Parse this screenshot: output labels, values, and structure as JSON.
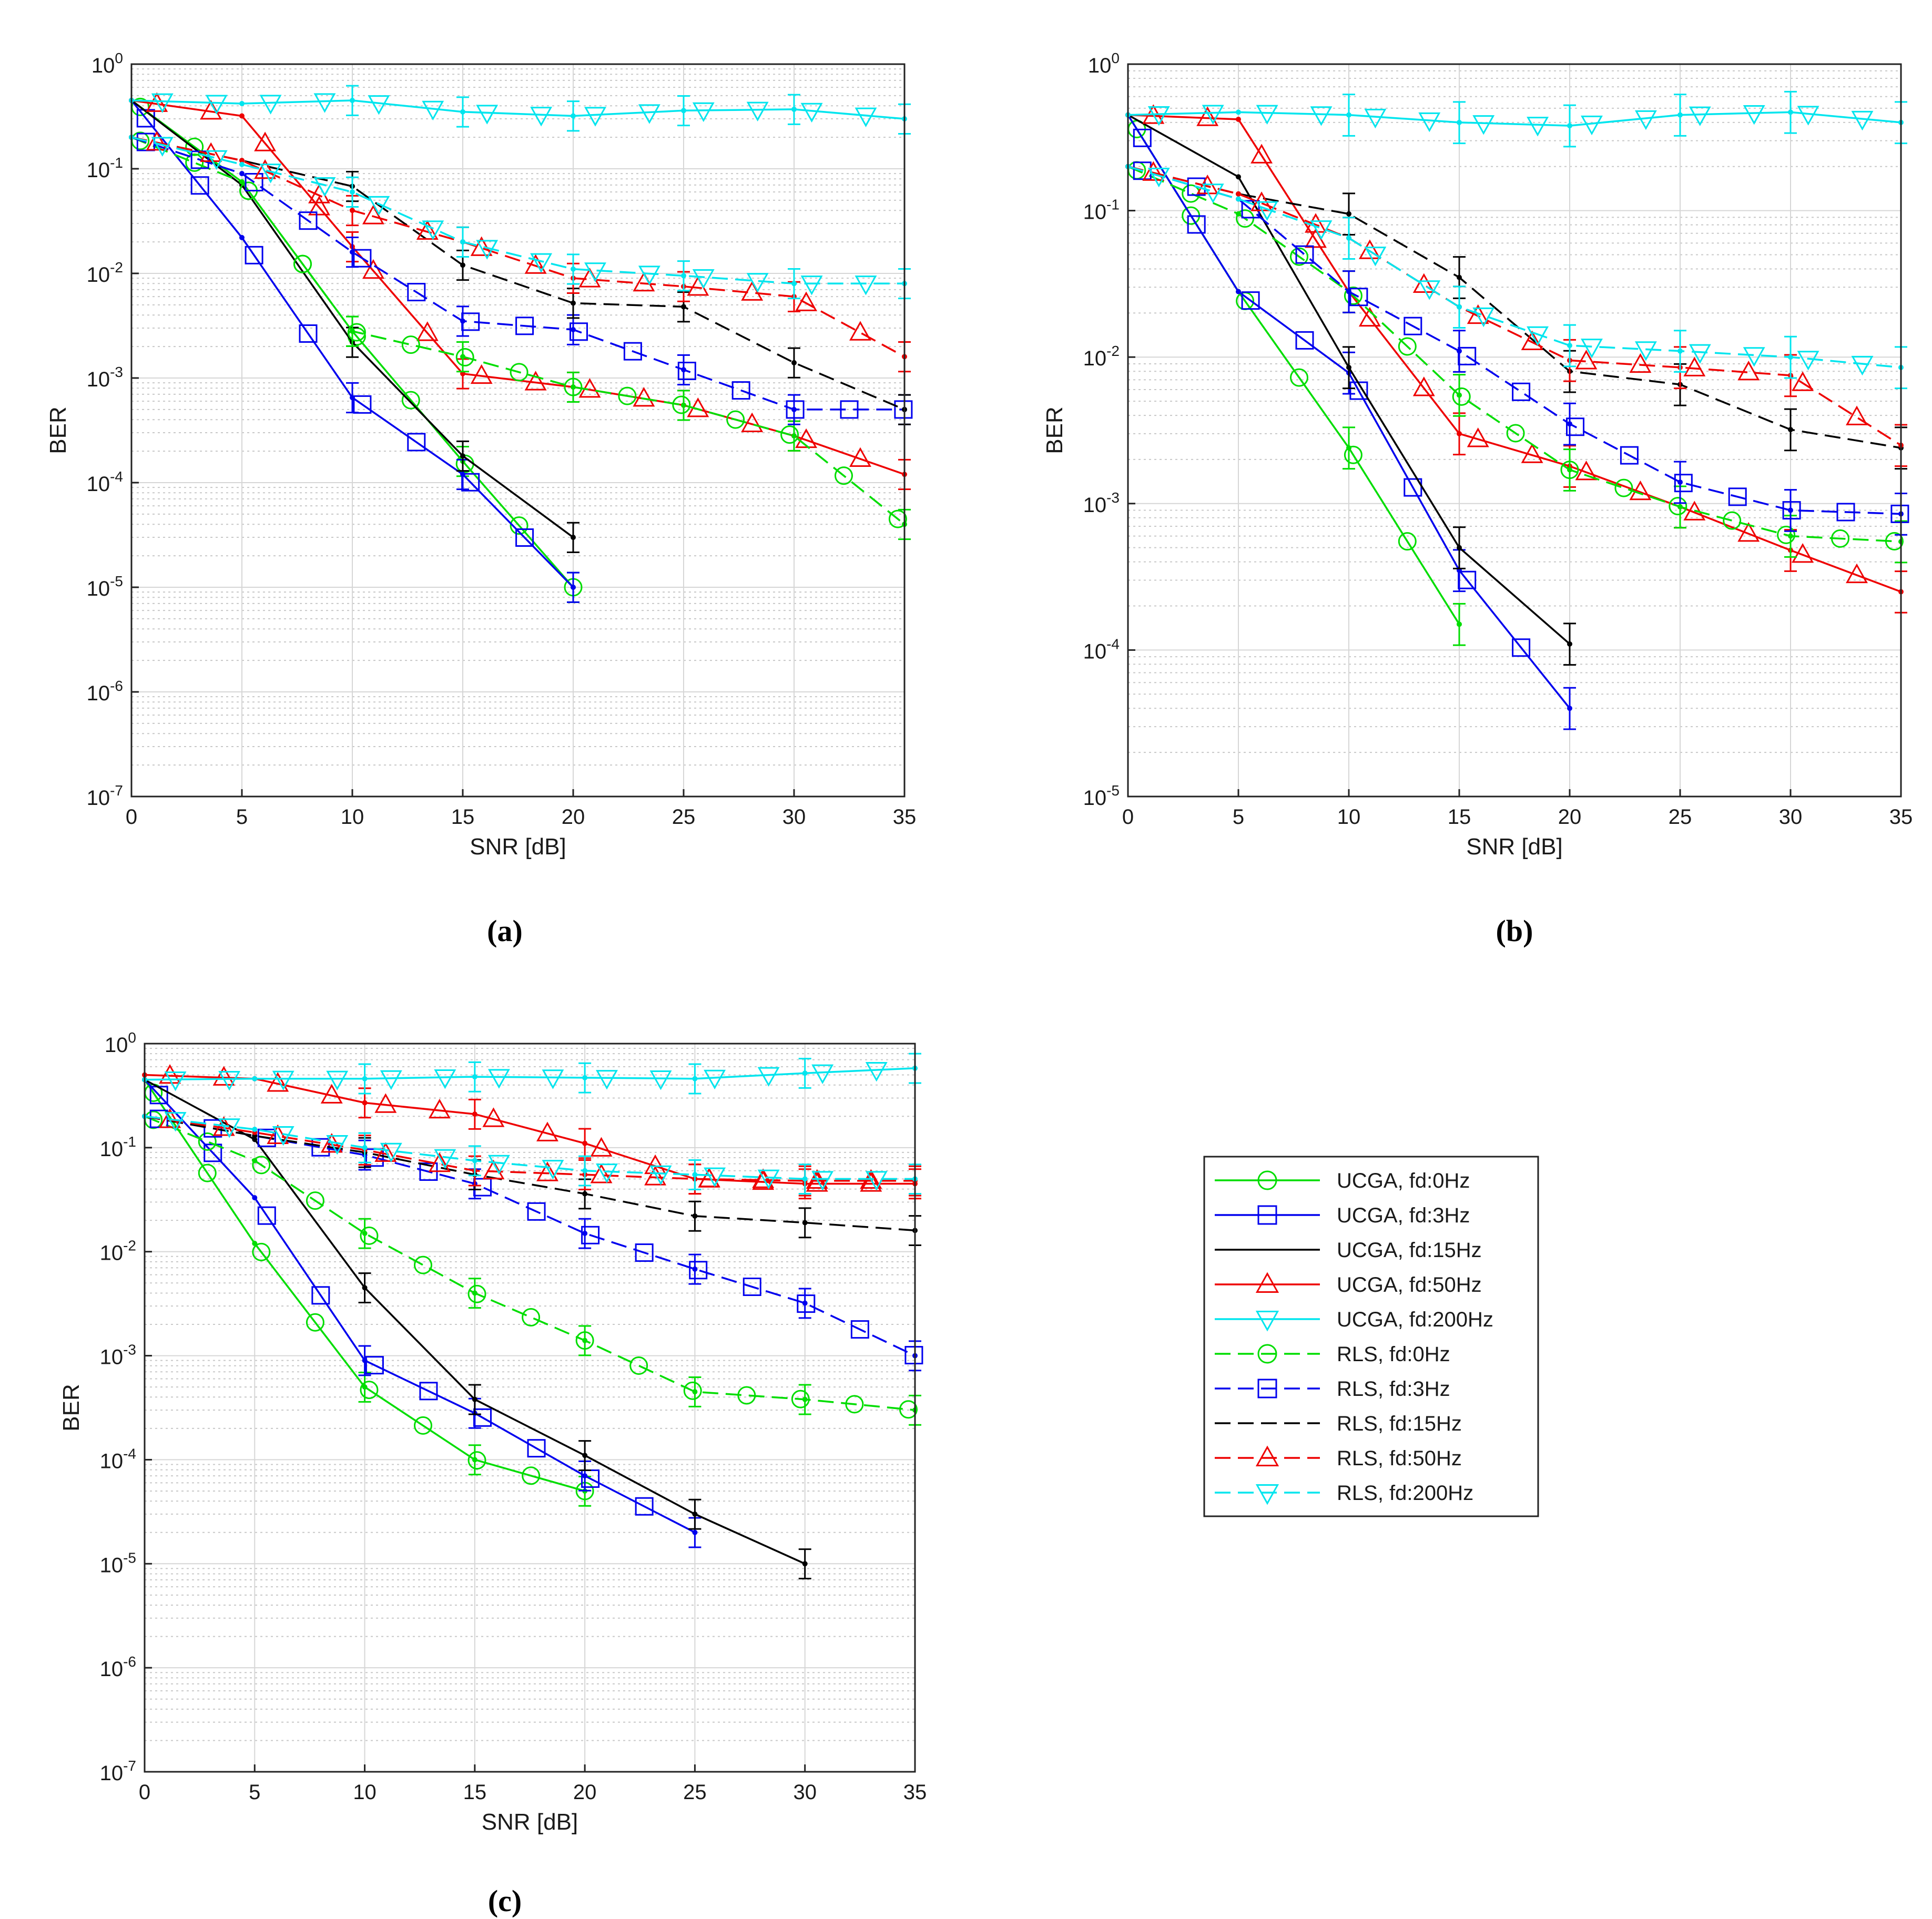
{
  "chart_data": [
    {
      "type": "line",
      "caption": "(a)",
      "xlabel": "SNR [dB]",
      "ylabel": "BER",
      "xlim": [
        0,
        35
      ],
      "ylim": [
        1e-07,
        1
      ],
      "yscale": "log",
      "grid": true,
      "x_ticks": [
        0,
        5,
        10,
        15,
        20,
        25,
        30,
        35
      ],
      "y_ticks": [
        -7,
        -6,
        -5,
        -4,
        -3,
        -2,
        -1,
        0
      ],
      "series": [
        {
          "name": "UCGA, fd:0Hz",
          "x": [
            0,
            5,
            10,
            15,
            20,
            25,
            30,
            35
          ],
          "y": [
            0.45,
            0.075,
            0.0028,
            0.00016,
            1e-05,
            null,
            null,
            null
          ]
        },
        {
          "name": "UCGA, fd:3Hz",
          "x": [
            0,
            5,
            10,
            15,
            20,
            25,
            30,
            35
          ],
          "y": [
            0.45,
            0.022,
            0.00065,
            0.00012,
            1e-05,
            null,
            null,
            null
          ]
        },
        {
          "name": "UCGA, fd:15Hz",
          "x": [
            0,
            5,
            10,
            15,
            20,
            25,
            30,
            35
          ],
          "y": [
            0.45,
            0.07,
            0.0022,
            0.00018,
            3e-05,
            null,
            null,
            null
          ]
        },
        {
          "name": "UCGA, fd:50Hz",
          "x": [
            0,
            5,
            10,
            15,
            20,
            25,
            30,
            35
          ],
          "y": [
            0.45,
            0.32,
            0.018,
            0.0011,
            0.00082,
            0.00055,
            0.00028,
            0.00012
          ]
        },
        {
          "name": "UCGA, fd:200Hz",
          "x": [
            0,
            5,
            10,
            15,
            20,
            25,
            30,
            35
          ],
          "y": [
            0.45,
            0.42,
            0.45,
            0.35,
            0.32,
            0.36,
            0.37,
            0.3
          ]
        },
        {
          "name": "RLS, fd:0Hz",
          "x": [
            0,
            5,
            10,
            15,
            20,
            25,
            30,
            35
          ],
          "y": [
            0.2,
            0.075,
            0.0028,
            0.0016,
            0.00082,
            0.00055,
            0.00028,
            4e-05
          ]
        },
        {
          "name": "RLS, fd:3Hz",
          "x": [
            0,
            5,
            10,
            15,
            20,
            25,
            30,
            35
          ],
          "y": [
            0.2,
            0.09,
            0.016,
            0.0035,
            0.0029,
            0.0012,
            0.0005,
            0.0005
          ]
        },
        {
          "name": "RLS, fd:15Hz",
          "x": [
            0,
            5,
            10,
            15,
            20,
            25,
            30,
            35
          ],
          "y": [
            0.2,
            0.12,
            0.068,
            0.012,
            0.0052,
            0.0048,
            0.0014,
            0.0005
          ]
        },
        {
          "name": "RLS, fd:50Hz",
          "x": [
            0,
            5,
            10,
            15,
            20,
            25,
            30,
            35
          ],
          "y": [
            0.2,
            0.12,
            0.04,
            0.02,
            0.009,
            0.0075,
            0.006,
            0.0016
          ]
        },
        {
          "name": "RLS, fd:200Hz",
          "x": [
            0,
            5,
            10,
            15,
            20,
            25,
            30,
            35
          ],
          "y": [
            0.2,
            0.11,
            0.06,
            0.02,
            0.011,
            0.0095,
            0.008,
            0.008
          ]
        }
      ]
    },
    {
      "type": "line",
      "caption": "(b)",
      "xlabel": "SNR [dB]",
      "ylabel": "BER",
      "xlim": [
        0,
        35
      ],
      "ylim": [
        1e-05,
        1
      ],
      "yscale": "log",
      "grid": true,
      "x_ticks": [
        0,
        5,
        10,
        15,
        20,
        25,
        30,
        35
      ],
      "y_ticks": [
        -5,
        -4,
        -3,
        -2,
        -1,
        0
      ],
      "series": [
        {
          "name": "UCGA, fd:0Hz",
          "x": [
            0,
            5,
            10,
            15,
            20,
            25,
            30,
            35
          ],
          "y": [
            0.45,
            0.028,
            0.0024,
            0.00015,
            null,
            null,
            null,
            null
          ]
        },
        {
          "name": "UCGA, fd:3Hz",
          "x": [
            0,
            5,
            10,
            15,
            20,
            25,
            30,
            35
          ],
          "y": [
            0.45,
            0.028,
            0.0078,
            0.00035,
            4e-05,
            null,
            null,
            null
          ]
        },
        {
          "name": "UCGA, fd:15Hz",
          "x": [
            0,
            5,
            10,
            15,
            20,
            25,
            30,
            35
          ],
          "y": [
            0.45,
            0.17,
            0.0085,
            0.0005,
            0.00011,
            null,
            null,
            null
          ]
        },
        {
          "name": "UCGA, fd:50Hz",
          "x": [
            0,
            5,
            10,
            15,
            20,
            25,
            30,
            35
          ],
          "y": [
            0.45,
            0.42,
            0.028,
            0.003,
            0.0018,
            0.00095,
            0.00048,
            0.00025
          ]
        },
        {
          "name": "UCGA, fd:200Hz",
          "x": [
            0,
            5,
            10,
            15,
            20,
            25,
            30,
            35
          ],
          "y": [
            0.45,
            0.47,
            0.45,
            0.4,
            0.38,
            0.45,
            0.47,
            0.4
          ]
        },
        {
          "name": "RLS, fd:0Hz",
          "x": [
            0,
            5,
            10,
            15,
            20,
            25,
            30,
            35
          ],
          "y": [
            0.2,
            0.095,
            0.028,
            0.0055,
            0.0017,
            0.00095,
            0.0006,
            0.00055
          ]
        },
        {
          "name": "RLS, fd:3Hz",
          "x": [
            0,
            5,
            10,
            15,
            20,
            25,
            30,
            35
          ],
          "y": [
            0.2,
            0.12,
            0.028,
            0.011,
            0.0035,
            0.0014,
            0.0009,
            0.00085
          ]
        },
        {
          "name": "RLS, fd:15Hz",
          "x": [
            0,
            5,
            10,
            15,
            20,
            25,
            30,
            35
          ],
          "y": [
            0.2,
            0.13,
            0.095,
            0.035,
            0.008,
            0.0065,
            0.0032,
            0.0024
          ]
        },
        {
          "name": "RLS, fd:50Hz",
          "x": [
            0,
            5,
            10,
            15,
            20,
            25,
            30,
            35
          ],
          "y": [
            0.2,
            0.13,
            0.065,
            0.022,
            0.0095,
            0.0085,
            0.0075,
            0.0025
          ]
        },
        {
          "name": "RLS, fd:200Hz",
          "x": [
            0,
            5,
            10,
            15,
            20,
            25,
            30,
            35
          ],
          "y": [
            0.2,
            0.12,
            0.065,
            0.022,
            0.012,
            0.011,
            0.01,
            0.0085
          ]
        }
      ]
    },
    {
      "type": "line",
      "caption": "(c)",
      "xlabel": "SNR [dB]",
      "ylabel": "BER",
      "xlim": [
        0,
        35
      ],
      "ylim": [
        1e-07,
        1
      ],
      "yscale": "log",
      "grid": true,
      "x_ticks": [
        0,
        5,
        10,
        15,
        20,
        25,
        30,
        35
      ],
      "y_ticks": [
        -7,
        -6,
        -5,
        -4,
        -3,
        -2,
        -1,
        0
      ],
      "series": [
        {
          "name": "UCGA, fd:0Hz",
          "x": [
            0,
            5,
            10,
            15,
            20,
            25,
            30,
            35
          ],
          "y": [
            0.45,
            0.012,
            0.0005,
            0.0001,
            5e-05,
            null,
            null,
            null
          ]
        },
        {
          "name": "UCGA, fd:3Hz",
          "x": [
            0,
            5,
            10,
            15,
            20,
            25,
            30,
            35
          ],
          "y": [
            0.45,
            0.033,
            0.0009,
            0.00028,
            7e-05,
            2e-05,
            null,
            null
          ]
        },
        {
          "name": "UCGA, fd:15Hz",
          "x": [
            0,
            5,
            10,
            15,
            20,
            25,
            30,
            35
          ],
          "y": [
            0.45,
            0.12,
            0.0045,
            0.00038,
            0.00011,
            3e-05,
            1e-05,
            null
          ]
        },
        {
          "name": "UCGA, fd:50Hz",
          "x": [
            0,
            5,
            10,
            15,
            20,
            25,
            30,
            35
          ],
          "y": [
            0.5,
            0.46,
            0.27,
            0.21,
            0.11,
            0.05,
            0.045,
            0.045
          ]
        },
        {
          "name": "UCGA, fd:200Hz",
          "x": [
            0,
            5,
            10,
            15,
            20,
            25,
            30,
            35
          ],
          "y": [
            0.45,
            0.46,
            0.46,
            0.48,
            0.47,
            0.46,
            0.52,
            0.58
          ]
        },
        {
          "name": "RLS, fd:0Hz",
          "x": [
            0,
            5,
            10,
            15,
            20,
            25,
            30,
            35
          ],
          "y": [
            0.2,
            0.075,
            0.015,
            0.004,
            0.0014,
            0.00045,
            0.00038,
            0.0003
          ]
        },
        {
          "name": "RLS, fd:3Hz",
          "x": [
            0,
            5,
            10,
            15,
            20,
            25,
            30,
            35
          ],
          "y": [
            0.2,
            0.13,
            0.085,
            0.045,
            0.015,
            0.0068,
            0.0032,
            0.001
          ]
        },
        {
          "name": "RLS, fd:15Hz",
          "x": [
            0,
            5,
            10,
            15,
            20,
            25,
            30,
            35
          ],
          "y": [
            0.2,
            0.13,
            0.09,
            0.055,
            0.036,
            0.022,
            0.019,
            0.016
          ]
        },
        {
          "name": "RLS, fd:50Hz",
          "x": [
            0,
            5,
            10,
            15,
            20,
            25,
            30,
            35
          ],
          "y": [
            0.2,
            0.14,
            0.095,
            0.06,
            0.055,
            0.05,
            0.048,
            0.048
          ]
        },
        {
          "name": "RLS, fd:200Hz",
          "x": [
            0,
            5,
            10,
            15,
            20,
            25,
            30,
            35
          ],
          "y": [
            0.2,
            0.15,
            0.1,
            0.075,
            0.06,
            0.055,
            0.05,
            0.05
          ]
        }
      ]
    }
  ],
  "legend": {
    "placement": "right-of-panel-c",
    "entries": [
      {
        "label": "UCGA, fd:0Hz",
        "color": "#00dd00",
        "dash": "solid",
        "marker": "circle"
      },
      {
        "label": "UCGA, fd:3Hz",
        "color": "#0000ee",
        "dash": "solid",
        "marker": "square"
      },
      {
        "label": "UCGA, fd:15Hz",
        "color": "#000000",
        "dash": "solid",
        "marker": "none"
      },
      {
        "label": "UCGA, fd:50Hz",
        "color": "#ee0000",
        "dash": "solid",
        "marker": "triangle-up"
      },
      {
        "label": "UCGA, fd:200Hz",
        "color": "#00e5ee",
        "dash": "solid",
        "marker": "triangle-down"
      },
      {
        "label": "RLS, fd:0Hz",
        "color": "#00dd00",
        "dash": "dashed",
        "marker": "circle"
      },
      {
        "label": "RLS, fd:3Hz",
        "color": "#0000ee",
        "dash": "dashed",
        "marker": "square"
      },
      {
        "label": "RLS, fd:15Hz",
        "color": "#000000",
        "dash": "dashed",
        "marker": "none"
      },
      {
        "label": "RLS, fd:50Hz",
        "color": "#ee0000",
        "dash": "dashed",
        "marker": "triangle-up"
      },
      {
        "label": "RLS, fd:200Hz",
        "color": "#00e5ee",
        "dash": "dashed",
        "marker": "triangle-down"
      }
    ]
  }
}
